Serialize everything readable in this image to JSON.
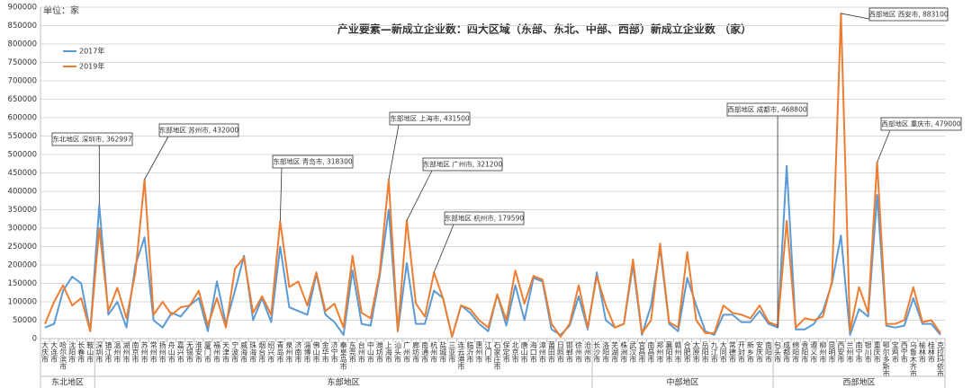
{
  "chart_data": {
    "type": "line",
    "title": "产业要素—新成立企业数：四大区域（东部、东北、中部、西部）新成立企业数 （家）",
    "unit_label": "单位：家",
    "groups": [
      {
        "name": "东北地区",
        "categories": [
          "大庆市",
          "大连市",
          "哈尔滨市",
          "沈阳市",
          "长春市",
          "鞍山市"
        ]
      },
      {
        "name": "东部地区",
        "categories": [
          "深圳市",
          "镇江市",
          "温州市",
          "湖州市",
          "南京市",
          "苏州市",
          "常州市",
          "扬州市",
          "舟山市",
          "嘉兴市",
          "无锡市",
          "淮安市",
          "厦门市",
          "福州市",
          "天津市",
          "宁波市",
          "威海市",
          "珠海市",
          "烟台市",
          "绍兴市",
          "青岛市",
          "泉州市",
          "济南市",
          "淄博市",
          "佛山市",
          "金华市",
          "济宁市",
          "秦皇岛市",
          "东莞市",
          "台州市",
          "中山市",
          "潍坊市",
          "上海市",
          "汕头市",
          "广州市",
          "廊坊市",
          "南通市",
          "杭州市",
          "盐城市",
          "三亚市",
          "连云港市",
          "临沂市",
          "惠州市",
          "江门市",
          "石家庄市",
          "保定市",
          "北京市",
          "唐山市",
          "海口市",
          "漳州市",
          "莆田市",
          "日照市",
          "邯郸市",
          "徐州市",
          "沧州市"
        ]
      },
      {
        "name": "中部地区",
        "categories": [
          "长沙市",
          "洛阳市",
          "芜湖市",
          "株洲市",
          "武汉市",
          "宜昌市",
          "南昌市",
          "郑州市",
          "襄阳市",
          "赣州市",
          "合肥市",
          "太原市",
          "岳阳市",
          "九江市",
          "大同市",
          "常德市",
          "开封市",
          "新乡市",
          "安庆市",
          "南阳市"
        ]
      },
      {
        "name": "西部地区",
        "categories": [
          "包头市",
          "成都市",
          "绵阳市",
          "贵阳市",
          "遵义市",
          "柳州市",
          "昆明市",
          "西安市",
          "兰州市",
          "南宁市",
          "银川市",
          "重庆市",
          "鄂尔多斯市",
          "宝鸡市",
          "西宁市",
          "乌鲁木齐市",
          "榆林市",
          "桂林市",
          "克拉玛依市"
        ]
      }
    ],
    "series": [
      {
        "name": "2017年",
        "color": "#5b9bd5",
        "values": [
          30000,
          40000,
          130000,
          168000,
          150000,
          20000,
          362997,
          65000,
          100000,
          30000,
          200000,
          275000,
          50000,
          30000,
          70000,
          60000,
          90000,
          110000,
          20000,
          155000,
          40000,
          130000,
          225000,
          50000,
          110000,
          45000,
          250000,
          85000,
          75000,
          65000,
          175000,
          65000,
          45000,
          10000,
          185000,
          40000,
          35000,
          170000,
          350000,
          20000,
          205000,
          40000,
          40000,
          130000,
          110000,
          5000,
          90000,
          70000,
          40000,
          20000,
          120000,
          35000,
          145000,
          50000,
          165000,
          155000,
          25000,
          10000,
          35000,
          115000,
          25000,
          180000,
          50000,
          30000,
          40000,
          200000,
          10000,
          90000,
          245000,
          40000,
          20000,
          165000,
          90000,
          20000,
          10000,
          65000,
          65000,
          45000,
          45000,
          75000,
          40000,
          30000,
          468800,
          25000,
          25000,
          40000,
          75000,
          150000,
          280000,
          10000,
          80000,
          60000,
          390000,
          35000,
          30000,
          35000,
          110000,
          40000,
          40000,
          10000
        ]
      },
      {
        "name": "2019年",
        "color": "#ed7d31",
        "values": [
          40000,
          100000,
          145000,
          90000,
          110000,
          20000,
          300000,
          75000,
          138000,
          55000,
          180000,
          432000,
          65000,
          100000,
          65000,
          85000,
          90000,
          130000,
          35000,
          110000,
          30000,
          190000,
          220000,
          70000,
          115000,
          65000,
          318300,
          140000,
          155000,
          90000,
          180000,
          75000,
          95000,
          30000,
          225000,
          70000,
          55000,
          180000,
          431500,
          20000,
          321200,
          95000,
          60000,
          179590,
          110000,
          5000,
          90000,
          80000,
          50000,
          30000,
          120000,
          50000,
          185000,
          95000,
          170000,
          160000,
          40000,
          5000,
          40000,
          145000,
          30000,
          170000,
          90000,
          30000,
          40000,
          215000,
          15000,
          50000,
          258000,
          45000,
          30000,
          235000,
          50000,
          15000,
          15000,
          90000,
          70000,
          65000,
          55000,
          90000,
          45000,
          35000,
          320000,
          30000,
          55000,
          50000,
          60000,
          155000,
          883100,
          20000,
          140000,
          70000,
          479000,
          40000,
          40000,
          50000,
          140000,
          45000,
          50000,
          15000
        ]
      }
    ],
    "ylim": [
      0,
      900000
    ],
    "yticks": [
      0,
      50000,
      100000,
      150000,
      200000,
      250000,
      300000,
      350000,
      400000,
      450000,
      500000,
      550000,
      600000,
      650000,
      700000,
      750000,
      800000,
      850000,
      900000
    ],
    "grid": true,
    "annotations": [
      "东北地区 深圳市, 362997",
      "东部地区 苏州市, 432000",
      "东部地区 青岛市, 318300",
      "东部地区 上海市, 431500",
      "东部地区 广州市, 321200",
      "东部地区 杭州市, 179590",
      "西部地区 成都市, 468800",
      "西部地区 西安市, 883100",
      "西部地区 重庆市, 479000"
    ]
  }
}
